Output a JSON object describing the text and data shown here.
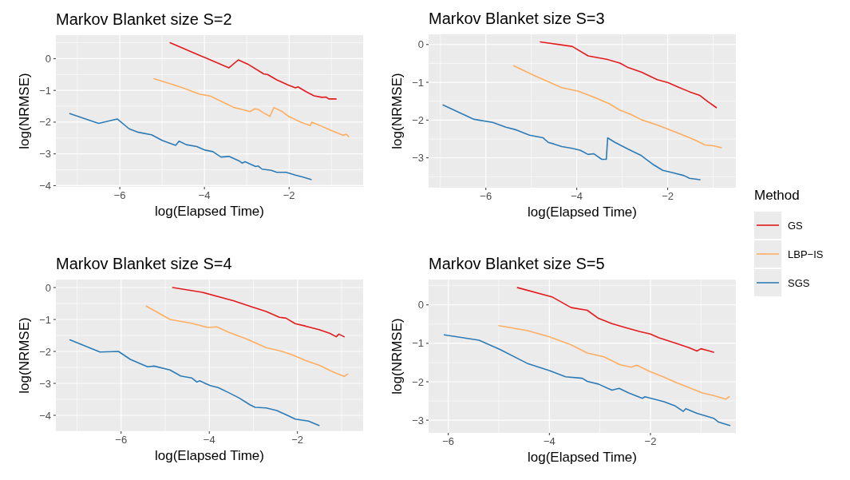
{
  "chart_data": [
    {
      "type": "line",
      "title": "Markov Blanket size S=2",
      "xlabel": "log(Elapsed Time)",
      "ylabel": "log(NRMSE)",
      "xlim": [
        -7.51,
        -0.25
      ],
      "ylim": [
        -4.04,
        0.74
      ],
      "xticks": [
        -6,
        -4,
        -2
      ],
      "yticks": [
        -4,
        -3,
        -2,
        -1,
        0
      ],
      "grid": true,
      "legend": "right",
      "legend_title": "Method",
      "series": [
        {
          "name": "GS",
          "color": "#e41a1c",
          "x": [
            -4.81,
            -3.42,
            -3.2,
            -2.98,
            -2.6,
            -2.51,
            -2.29,
            -2.04,
            -1.85,
            -1.79,
            -1.6,
            -1.41,
            -1.22,
            -1.13,
            -1.06,
            -0.89
          ],
          "values": [
            0.5,
            -0.29,
            -0.04,
            -0.17,
            -0.48,
            -0.5,
            -0.67,
            -0.82,
            -0.92,
            -0.89,
            -1.04,
            -1.17,
            -1.22,
            -1.21,
            -1.27,
            -1.27
          ]
        },
        {
          "name": "LBP−IS",
          "color": "#fdae61",
          "x": [
            -5.19,
            -4.55,
            -4.11,
            -3.86,
            -3.55,
            -3.3,
            -3.11,
            -2.92,
            -2.81,
            -2.73,
            -2.6,
            -2.45,
            -2.36,
            -2.16,
            -2.01,
            -1.72,
            -1.5,
            -1.46,
            -1.28,
            -1.03,
            -0.72,
            -0.65,
            -0.59
          ],
          "values": [
            -0.63,
            -0.9,
            -1.12,
            -1.18,
            -1.38,
            -1.54,
            -1.6,
            -1.67,
            -1.58,
            -1.6,
            -1.71,
            -1.82,
            -1.54,
            -1.67,
            -1.82,
            -2.0,
            -2.11,
            -2.0,
            -2.1,
            -2.25,
            -2.42,
            -2.38,
            -2.46
          ]
        },
        {
          "name": "SGS",
          "color": "#2c7bb6",
          "x": [
            -7.18,
            -6.5,
            -6.06,
            -5.78,
            -5.56,
            -5.25,
            -4.99,
            -4.68,
            -4.6,
            -4.43,
            -4.18,
            -3.99,
            -3.8,
            -3.61,
            -3.42,
            -3.17,
            -3.11,
            -3.04,
            -2.79,
            -2.73,
            -2.64,
            -2.42,
            -2.29,
            -2.07,
            -1.85,
            -1.67,
            -1.48
          ],
          "values": [
            -1.73,
            -2.04,
            -1.9,
            -2.21,
            -2.32,
            -2.4,
            -2.58,
            -2.73,
            -2.6,
            -2.71,
            -2.77,
            -2.88,
            -2.93,
            -3.1,
            -3.08,
            -3.23,
            -3.29,
            -3.25,
            -3.4,
            -3.38,
            -3.48,
            -3.52,
            -3.58,
            -3.58,
            -3.67,
            -3.73,
            -3.81
          ]
        }
      ]
    },
    {
      "type": "line",
      "title": "Markov Blanket size S=3",
      "xlabel": "log(Elapsed Time)",
      "ylabel": "log(NRMSE)",
      "xlim": [
        -7.26,
        -0.5
      ],
      "ylim": [
        -3.79,
        0.27
      ],
      "xticks": [
        -6,
        -4,
        -2
      ],
      "yticks": [
        -3,
        -2,
        -1,
        0
      ],
      "grid": true,
      "series": [
        {
          "color": "#e41a1c",
          "x": [
            -4.8,
            -4.1,
            -3.75,
            -3.34,
            -3.05,
            -2.87,
            -2.58,
            -2.23,
            -1.99,
            -1.76,
            -1.52,
            -1.29,
            -1.12,
            -0.93
          ],
          "values": [
            0.07,
            -0.05,
            -0.3,
            -0.39,
            -0.49,
            -0.61,
            -0.73,
            -0.93,
            -1.01,
            -1.13,
            -1.25,
            -1.35,
            -1.51,
            -1.67
          ]
        },
        {
          "color": "#fdae61",
          "x": [
            -5.39,
            -4.92,
            -4.33,
            -3.98,
            -3.63,
            -3.28,
            -3.05,
            -2.81,
            -2.58,
            -2.23,
            -1.99,
            -1.7,
            -1.41,
            -1.18,
            -1.0,
            -0.82
          ],
          "values": [
            -0.56,
            -0.83,
            -1.14,
            -1.23,
            -1.39,
            -1.57,
            -1.74,
            -1.85,
            -1.99,
            -2.13,
            -2.24,
            -2.38,
            -2.52,
            -2.66,
            -2.68,
            -2.73
          ]
        },
        {
          "color": "#2c7bb6",
          "x": [
            -6.94,
            -6.26,
            -5.85,
            -5.56,
            -5.33,
            -5.04,
            -4.74,
            -4.63,
            -4.51,
            -4.33,
            -4.1,
            -3.92,
            -3.75,
            -3.63,
            -3.45,
            -3.35,
            -3.32,
            -3.16,
            -2.87,
            -2.58,
            -2.34,
            -2.11,
            -1.87,
            -1.64,
            -1.52,
            -1.29
          ],
          "values": [
            -1.6,
            -1.98,
            -2.06,
            -2.19,
            -2.26,
            -2.4,
            -2.47,
            -2.59,
            -2.63,
            -2.7,
            -2.75,
            -2.8,
            -2.91,
            -2.89,
            -3.04,
            -3.04,
            -2.47,
            -2.59,
            -2.77,
            -2.94,
            -3.16,
            -3.33,
            -3.4,
            -3.47,
            -3.54,
            -3.58
          ]
        }
      ]
    },
    {
      "type": "line",
      "title": "Markov Blanket size S=4",
      "xlabel": "log(Elapsed Time)",
      "ylabel": "log(NRMSE)",
      "xlim": [
        -7.48,
        -0.51
      ],
      "ylim": [
        -4.5,
        0.25
      ],
      "xticks": [
        -6,
        -4,
        -2
      ],
      "yticks": [
        -4,
        -3,
        -2,
        -1,
        0
      ],
      "grid": true,
      "series": [
        {
          "color": "#e41a1c",
          "x": [
            -4.83,
            -4.16,
            -3.44,
            -3.02,
            -2.71,
            -2.41,
            -2.26,
            -2.05,
            -1.81,
            -1.51,
            -1.27,
            -1.12,
            -1.06,
            -0.94
          ],
          "values": [
            0,
            -0.15,
            -0.42,
            -0.61,
            -0.75,
            -0.93,
            -0.96,
            -1.13,
            -1.21,
            -1.32,
            -1.43,
            -1.54,
            -1.46,
            -1.54
          ]
        },
        {
          "color": "#fdae61",
          "x": [
            -5.43,
            -4.89,
            -4.4,
            -4.04,
            -3.83,
            -3.56,
            -3.14,
            -2.71,
            -2.35,
            -2.11,
            -1.81,
            -1.51,
            -1.15,
            -0.94,
            -0.86
          ],
          "values": [
            -0.58,
            -1.0,
            -1.12,
            -1.25,
            -1.23,
            -1.4,
            -1.62,
            -1.88,
            -2.0,
            -2.11,
            -2.29,
            -2.43,
            -2.67,
            -2.78,
            -2.71
          ]
        },
        {
          "color": "#2c7bb6",
          "x": [
            -7.16,
            -6.48,
            -6.06,
            -5.79,
            -5.4,
            -5.25,
            -4.89,
            -4.65,
            -4.4,
            -4.28,
            -4.22,
            -3.98,
            -3.8,
            -3.56,
            -3.32,
            -3.08,
            -2.96,
            -2.71,
            -2.47,
            -2.23,
            -2.05,
            -1.75,
            -1.51
          ],
          "values": [
            -1.64,
            -2.02,
            -2.0,
            -2.25,
            -2.48,
            -2.46,
            -2.58,
            -2.77,
            -2.83,
            -2.96,
            -2.92,
            -3.07,
            -3.13,
            -3.29,
            -3.46,
            -3.67,
            -3.75,
            -3.77,
            -3.85,
            -4.0,
            -4.12,
            -4.18,
            -4.32
          ]
        }
      ]
    },
    {
      "type": "line",
      "title": "Markov Blanket size S=5",
      "xlabel": "log(Elapsed Time)",
      "ylabel": "log(NRMSE)",
      "xlim": [
        -6.39,
        -0.31
      ],
      "ylim": [
        -3.33,
        0.66
      ],
      "xticks": [
        -6,
        -4,
        -2
      ],
      "yticks": [
        -3,
        -2,
        -1,
        0
      ],
      "grid": true,
      "series": [
        {
          "color": "#e41a1c",
          "x": [
            -4.63,
            -3.95,
            -3.57,
            -3.25,
            -3.03,
            -2.76,
            -2.49,
            -2.22,
            -2.0,
            -1.84,
            -1.51,
            -1.24,
            -1.08,
            -1.0,
            -0.86,
            -0.75
          ],
          "values": [
            0.45,
            0.21,
            -0.07,
            -0.14,
            -0.35,
            -0.49,
            -0.59,
            -0.69,
            -0.76,
            -0.85,
            -0.99,
            -1.11,
            -1.2,
            -1.14,
            -1.19,
            -1.23
          ]
        },
        {
          "color": "#fdae61",
          "x": [
            -5.0,
            -4.43,
            -4.0,
            -3.57,
            -3.25,
            -2.92,
            -2.6,
            -2.38,
            -2.27,
            -2.0,
            -1.73,
            -1.51,
            -1.24,
            -0.97,
            -0.75,
            -0.51,
            -0.44
          ],
          "values": [
            -0.54,
            -0.67,
            -0.83,
            -1.04,
            -1.25,
            -1.35,
            -1.56,
            -1.62,
            -1.57,
            -1.74,
            -1.88,
            -2.01,
            -2.15,
            -2.29,
            -2.36,
            -2.45,
            -2.39
          ]
        },
        {
          "color": "#2c7bb6",
          "x": [
            -6.08,
            -5.39,
            -4.98,
            -4.44,
            -4.0,
            -3.68,
            -3.35,
            -3.25,
            -3.03,
            -2.76,
            -2.62,
            -2.43,
            -2.16,
            -2.11,
            -1.73,
            -1.51,
            -1.35,
            -1.3,
            -1.08,
            -0.75,
            -0.65,
            -0.43
          ],
          "values": [
            -0.78,
            -0.92,
            -1.16,
            -1.52,
            -1.71,
            -1.87,
            -1.91,
            -1.99,
            -2.06,
            -2.22,
            -2.17,
            -2.29,
            -2.43,
            -2.39,
            -2.52,
            -2.63,
            -2.77,
            -2.7,
            -2.82,
            -2.95,
            -3.05,
            -3.14
          ]
        }
      ]
    }
  ]
}
